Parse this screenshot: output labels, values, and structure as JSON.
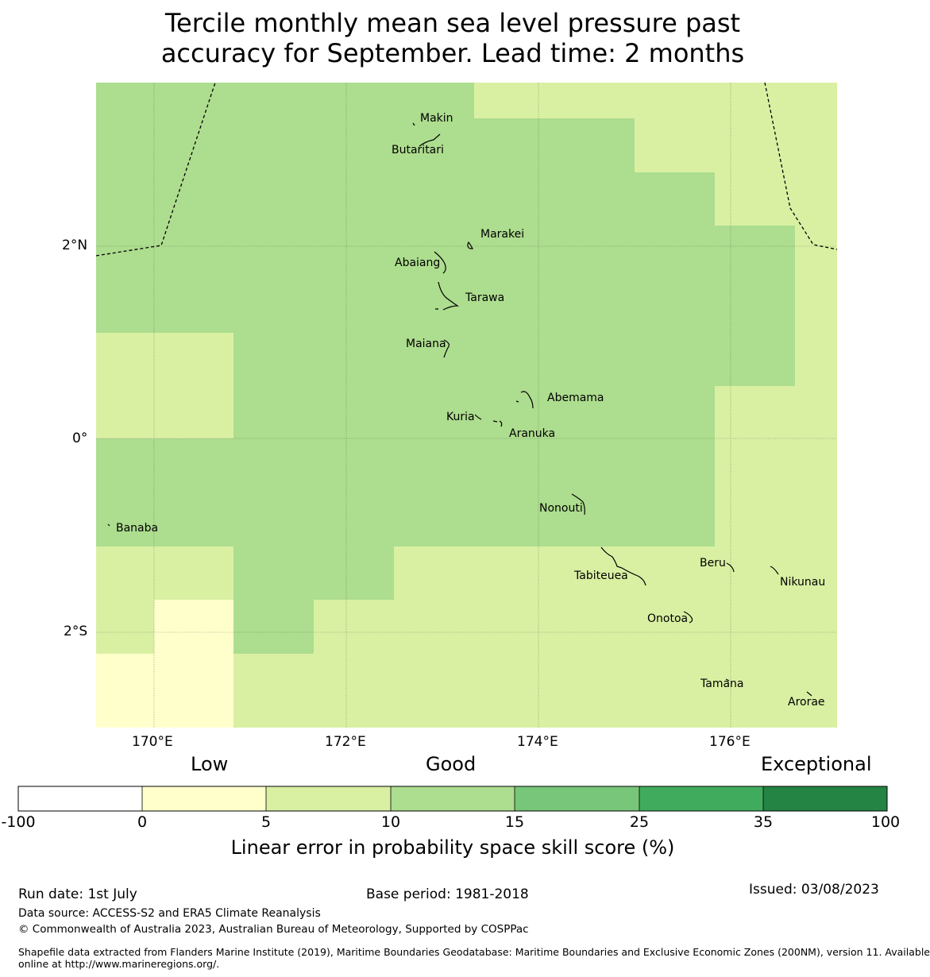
{
  "title_line1": "Tercile monthly mean sea level pressure past",
  "title_line2": "accuracy for September. Lead time: 2 months",
  "axes": {
    "lon_ticks": [
      "170°E",
      "172°E",
      "174°E",
      "176°E"
    ],
    "lat_ticks": [
      "2°N",
      "0°",
      "2°S"
    ],
    "lon_range": [
      169.4,
      177.1
    ],
    "lat_range": [
      -3.05,
      3.7
    ]
  },
  "colors": {
    "c_0_5": "#ffffcc",
    "c_5_10": "#d9f0a3",
    "c_10_15": "#addd8e",
    "c_15_25": "#78c679",
    "c_25_35": "#41ab5d",
    "c_35_100": "#238443"
  },
  "islands": [
    {
      "name": "Makin"
    },
    {
      "name": "Butaritari"
    },
    {
      "name": "Marakei"
    },
    {
      "name": "Abaiang"
    },
    {
      "name": "Tarawa"
    },
    {
      "name": "Maiana"
    },
    {
      "name": "Abemama"
    },
    {
      "name": "Kuria"
    },
    {
      "name": "Aranuka"
    },
    {
      "name": "Nonouti"
    },
    {
      "name": "Banaba"
    },
    {
      "name": "Beru"
    },
    {
      "name": "Tabiteuea"
    },
    {
      "name": "Nikunau"
    },
    {
      "name": "Onotoa"
    },
    {
      "name": "Tamana"
    },
    {
      "name": "Arorae"
    }
  ],
  "colorbar": {
    "categories": [
      "Low",
      "Good",
      "Exceptional"
    ],
    "ticks": [
      "-100",
      "0",
      "5",
      "10",
      "15",
      "25",
      "35",
      "100"
    ],
    "label": "Linear error in probability space skill score (%)"
  },
  "footer": {
    "run_date": "Run date: 1st July",
    "base_period": "Base period: 1981-2018",
    "issued": "Issued: 03/08/2023",
    "data_source": "Data source: ACCESS-S2 and ERA5 Climate Reanalysis",
    "copyright": "© Commonwealth of Australia 2023, Australian Bureau of Meteorology, Supported by COSPPac",
    "shapefile_line1": "Shapefile data extracted from Flanders Marine Institute (2019), Maritime Boundaries Geodatabase: Maritime Boundaries and Exclusive Economic Zones (200NM), version 11. Available",
    "shapefile_line2": "online at http://www.marineregions.org/."
  }
}
